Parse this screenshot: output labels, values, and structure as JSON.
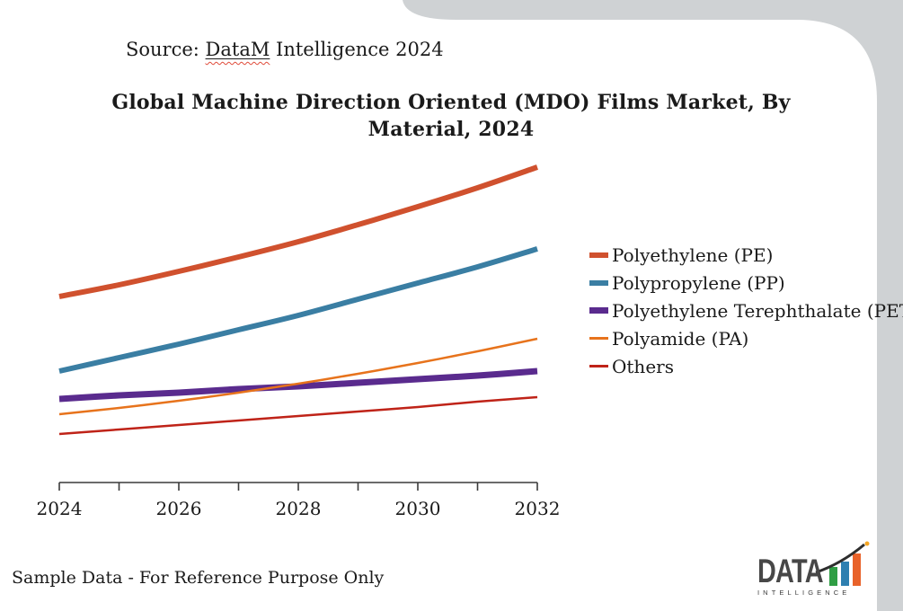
{
  "header": {
    "source_prefix": "Source: ",
    "source_brand": "DataM",
    "source_suffix": " Intelligence 2024",
    "title_line1": "Global Machine Direction Oriented (MDO) Films Market, By",
    "title_line2": "Material, 2024"
  },
  "footer": {
    "note": "Sample Data - For Reference Purpose Only"
  },
  "logo": {
    "wordmark": "DATA",
    "tagline": "INTELLIGENCE",
    "text_color": "#474747",
    "bar_colors": [
      "#2f9e44",
      "#2e7fb0",
      "#e8622a"
    ],
    "swoosh_color": "#2e2e2e",
    "dot_color": "#f5a623"
  },
  "theme": {
    "background": "#ffffff",
    "corner_gray": "#cfd2d4",
    "axis_color": "#3a3a3a",
    "text_color": "#1a1a1a",
    "squiggle_red": "#e04b3a"
  },
  "chart_data": {
    "type": "line",
    "title": "Global Machine Direction Oriented (MDO) Films Market, By Material, 2024",
    "x": [
      2024,
      2025,
      2026,
      2027,
      2028,
      2029,
      2030,
      2031,
      2032
    ],
    "x_tick_labels": [
      "2024",
      "2026",
      "2028",
      "2030",
      "2032"
    ],
    "x_tick_label_indexes": [
      0,
      2,
      4,
      6,
      8
    ],
    "xlabel": "",
    "ylabel": "",
    "y_axis_shown": false,
    "units": "relative market size (no y-axis shown in figure)",
    "ylim": [
      0,
      380
    ],
    "grid": false,
    "legend_position": "right",
    "series": [
      {
        "name": "Polyethylene (PE)",
        "color": "#d0512e",
        "stroke_width": 6,
        "values": [
          207,
          220,
          235,
          251,
          268,
          287,
          307,
          328,
          351
        ]
      },
      {
        "name": "Polypropylene (PP)",
        "color": "#3a7ea3",
        "stroke_width": 6,
        "values": [
          124,
          139,
          154,
          170,
          186,
          204,
          222,
          240,
          260
        ]
      },
      {
        "name": "Polyethylene Terephthalate (PET)",
        "color": "#5a2b8e",
        "stroke_width": 7,
        "values": [
          93,
          97,
          100,
          104,
          107,
          111,
          115,
          119,
          124
        ]
      },
      {
        "name": "Polyamide (PA)",
        "color": "#e7731c",
        "stroke_width": 2.5,
        "values": [
          76,
          83,
          91,
          100,
          110,
          121,
          133,
          146,
          160
        ]
      },
      {
        "name": "Others",
        "color": "#bf2318",
        "stroke_width": 2.5,
        "values": [
          54,
          59,
          64,
          69,
          74,
          79,
          84,
          90,
          95
        ]
      }
    ]
  }
}
